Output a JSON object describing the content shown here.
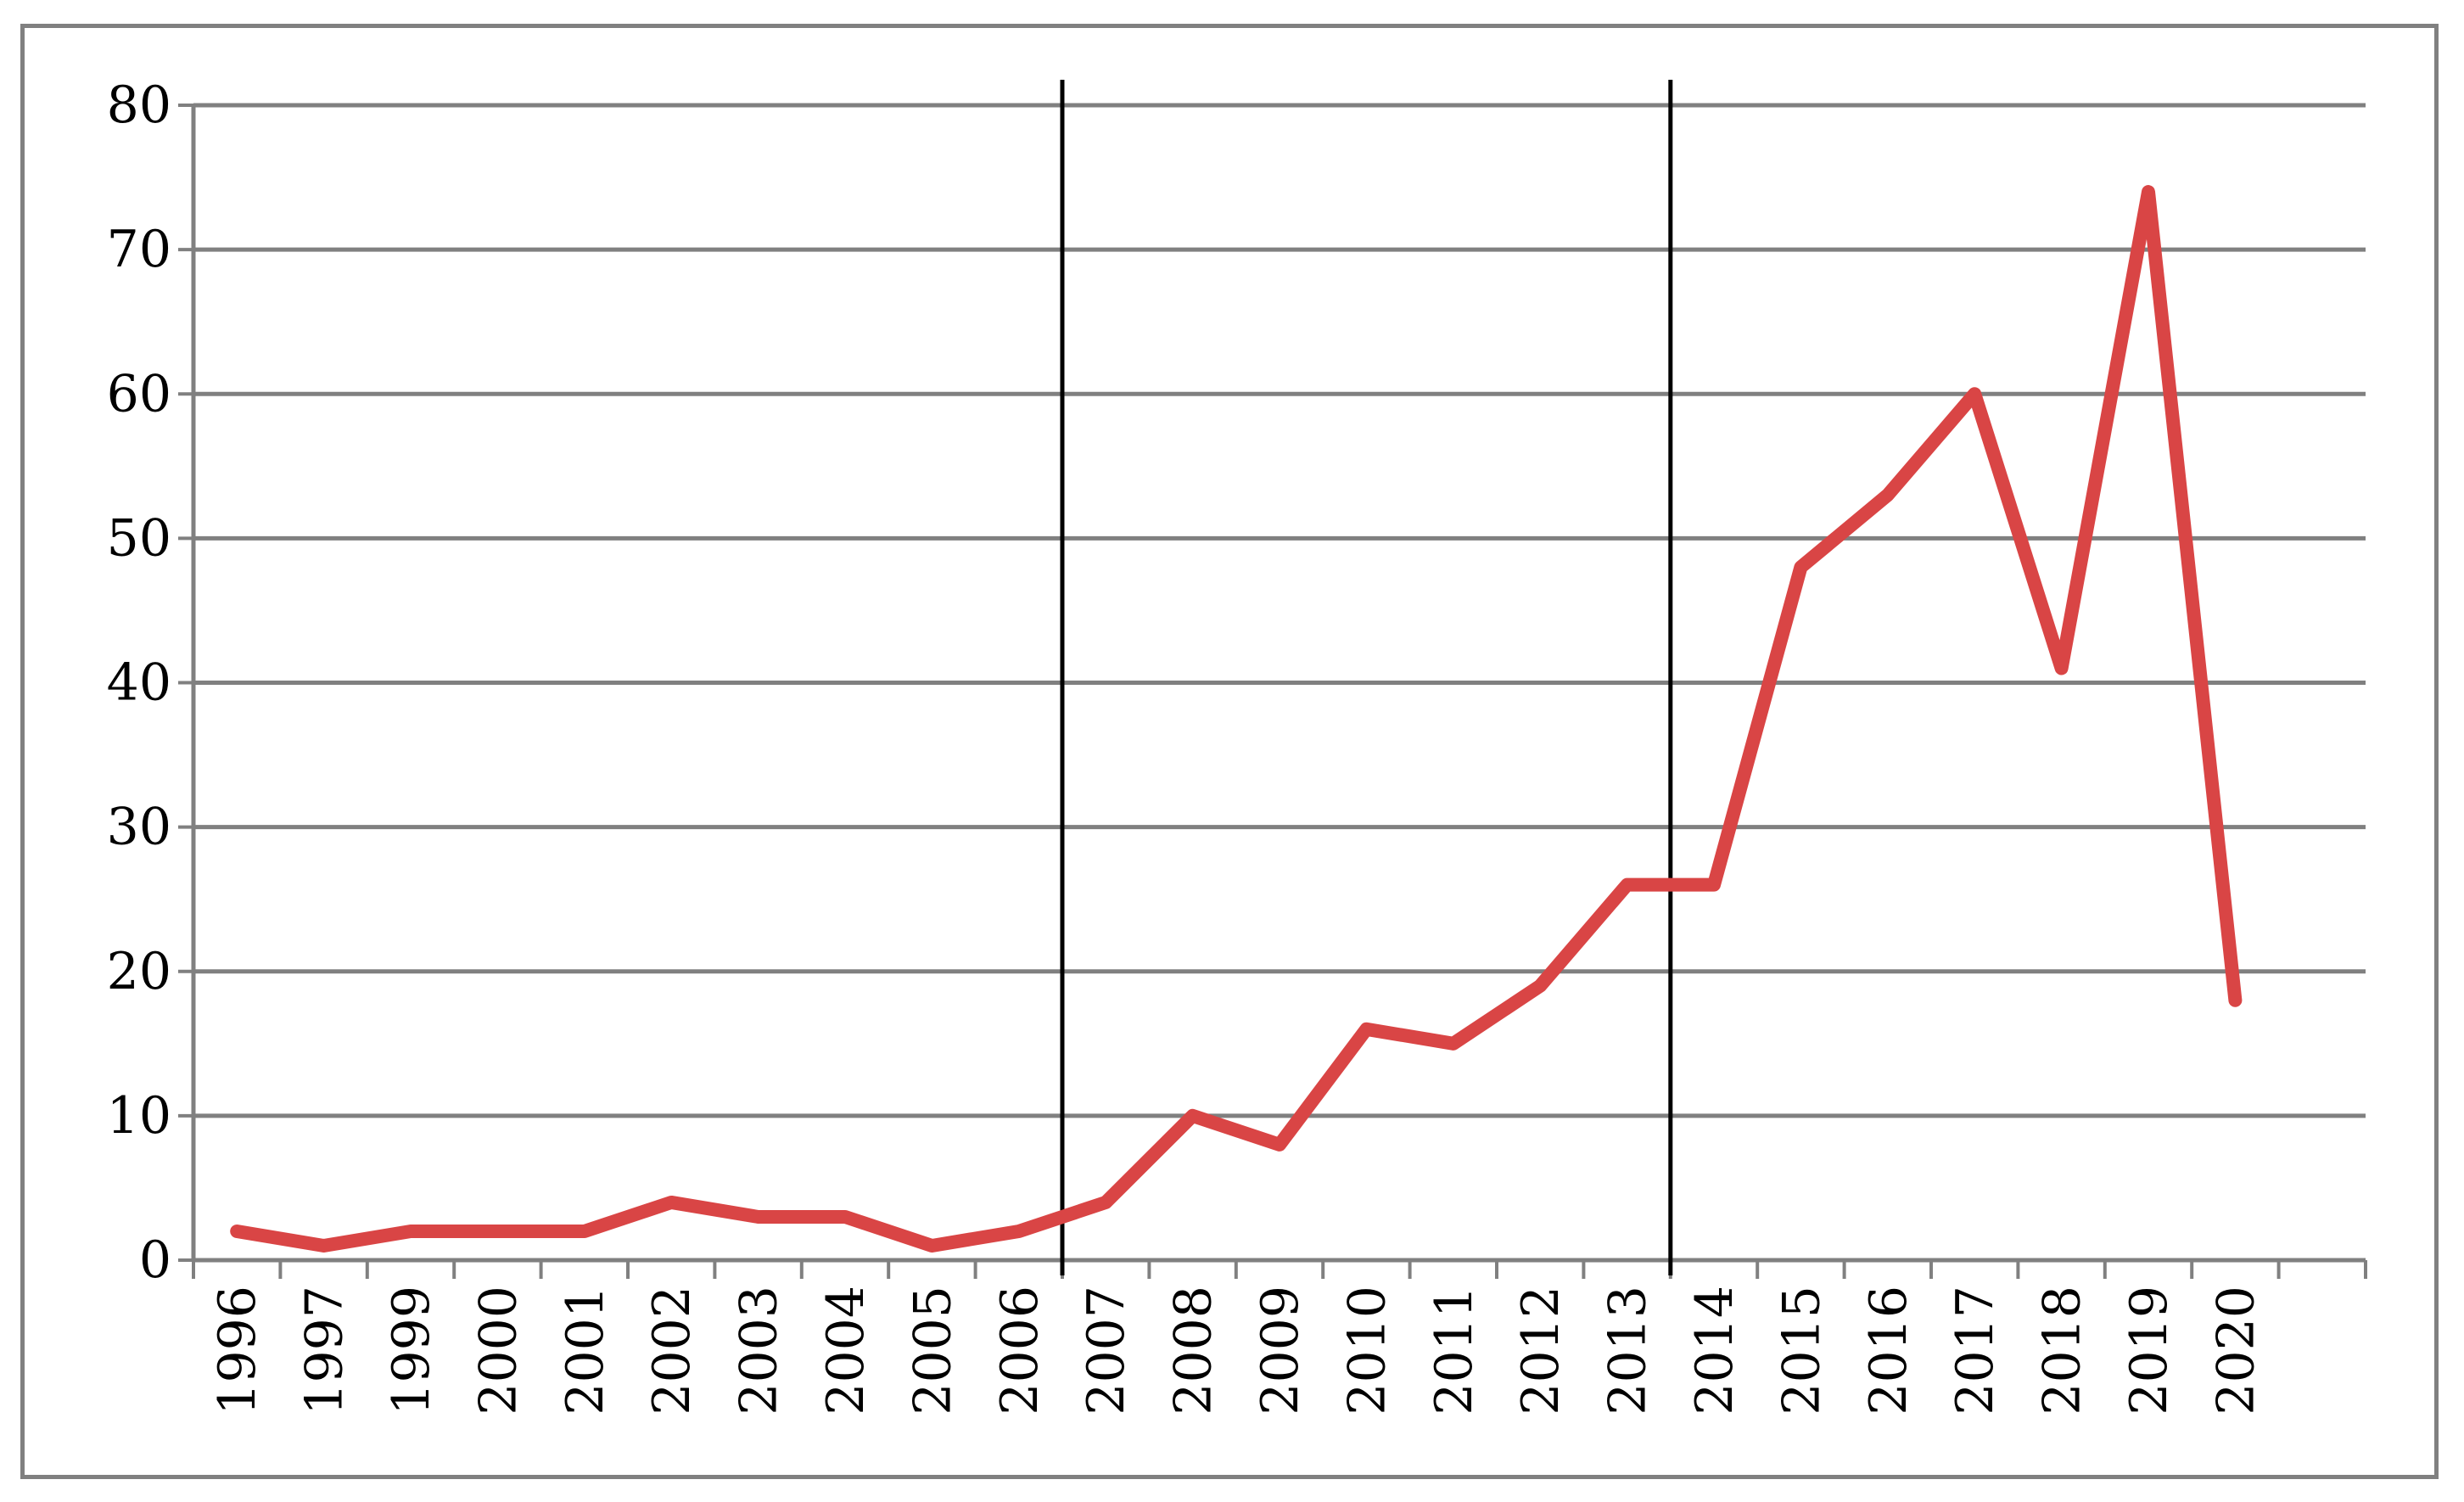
{
  "chart_data": {
    "type": "line",
    "title": "",
    "xlabel": "",
    "ylabel": "",
    "categories": [
      "1996",
      "1997",
      "1999",
      "2000",
      "2001",
      "2002",
      "2003",
      "2004",
      "2005",
      "2006",
      "2007",
      "2008",
      "2009",
      "2010",
      "2011",
      "2012",
      "2013",
      "2014",
      "2015",
      "2016",
      "2017",
      "2018",
      "2019",
      "2020"
    ],
    "series": [
      {
        "values": [
          2,
          1,
          2,
          2,
          2,
          4,
          3,
          3,
          1,
          2,
          4,
          10,
          8,
          16,
          15,
          19,
          26,
          26,
          48,
          53,
          60,
          41,
          74,
          18
        ],
        "color": "#d94545"
      }
    ],
    "ylim": [
      0,
      80
    ],
    "yticks": [
      0,
      10,
      20,
      30,
      40,
      50,
      60,
      70,
      80
    ],
    "category_slots": 25,
    "reference_lines_at_category_boundary": [
      "2006|2007",
      "2013|2014"
    ],
    "grid": "horizontal",
    "legend": "none",
    "x_tick_label_rotation": "vertical",
    "colors": {
      "grid": "#808080",
      "axis": "#808080",
      "reference_line": "#000000",
      "frame": "#808080"
    }
  }
}
